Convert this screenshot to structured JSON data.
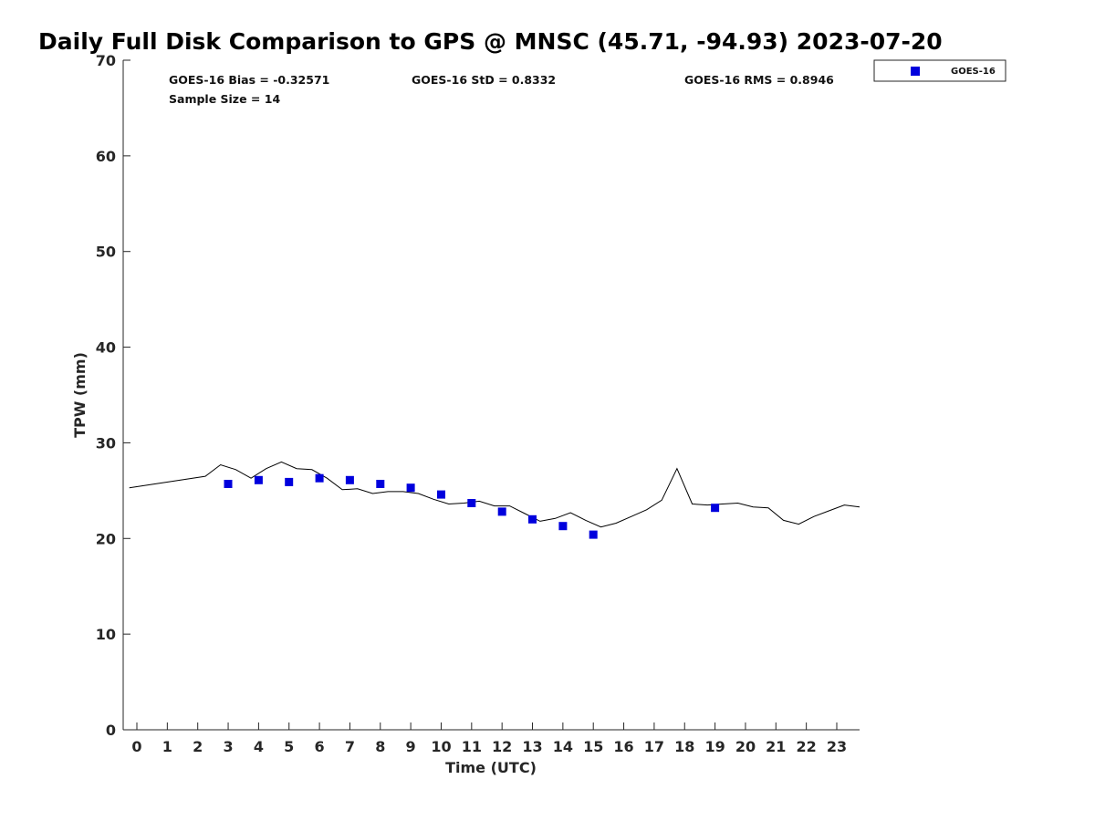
{
  "chart_data": {
    "type": "scatter",
    "title": "Daily Full Disk Comparison to GPS @ MNSC (45.71, -94.93) 2023-07-20",
    "xlabel": "Time (UTC)",
    "ylabel": "TPW (mm)",
    "xlim": [
      -0.45,
      23.75
    ],
    "ylim": [
      0,
      70
    ],
    "xticks": [
      0,
      1,
      2,
      3,
      4,
      5,
      6,
      7,
      8,
      9,
      10,
      11,
      12,
      13,
      14,
      15,
      16,
      17,
      18,
      19,
      20,
      21,
      22,
      23
    ],
    "yticks": [
      0,
      10,
      20,
      30,
      40,
      50,
      60,
      70
    ],
    "grid": false,
    "legend": {
      "position": "top-right",
      "entries": [
        "GOES-16"
      ]
    },
    "stats": {
      "bias": "GOES-16 Bias = -0.32571",
      "std": "GOES-16 StD = 0.8332",
      "rms": "GOES-16 RMS = 0.8946",
      "sample_size": "Sample Size = 14"
    },
    "series": [
      {
        "name": "GPS",
        "kind": "line",
        "color": "#000000",
        "x": [
          -0.25,
          2.25,
          2.75,
          3.25,
          3.75,
          4.25,
          4.75,
          5.25,
          5.75,
          6.25,
          6.75,
          7.25,
          7.75,
          8.25,
          8.75,
          9.25,
          9.75,
          10.25,
          10.75,
          11.25,
          11.75,
          12.25,
          12.75,
          13.25,
          13.75,
          14.25,
          14.75,
          15.25,
          15.75,
          16.25,
          16.75,
          17.25,
          17.75,
          18.25,
          18.75,
          19.25,
          19.75,
          20.25,
          20.75,
          21.25,
          21.75,
          22.25,
          22.75,
          23.25,
          23.75
        ],
        "y": [
          25.3,
          26.5,
          27.7,
          27.2,
          26.3,
          27.3,
          28.0,
          27.3,
          27.2,
          26.3,
          25.1,
          25.2,
          24.7,
          24.9,
          24.9,
          24.7,
          24.1,
          23.6,
          23.7,
          23.9,
          23.4,
          23.4,
          22.6,
          21.8,
          22.1,
          22.7,
          21.9,
          21.2,
          21.6,
          22.3,
          23.0,
          24.0,
          27.3,
          23.6,
          23.5,
          23.6,
          23.7,
          23.3,
          23.2,
          21.9,
          21.5,
          22.3,
          22.9,
          23.5,
          23.3
        ]
      },
      {
        "name": "GOES-16",
        "kind": "scatter",
        "color": "#0000dd",
        "x": [
          3,
          4,
          5,
          6,
          7,
          8,
          9,
          10,
          11,
          12,
          13,
          14,
          15,
          19
        ],
        "y": [
          25.7,
          26.1,
          25.9,
          26.3,
          26.1,
          25.7,
          25.3,
          24.6,
          23.7,
          22.8,
          22.0,
          21.3,
          20.4,
          23.2
        ]
      }
    ]
  }
}
